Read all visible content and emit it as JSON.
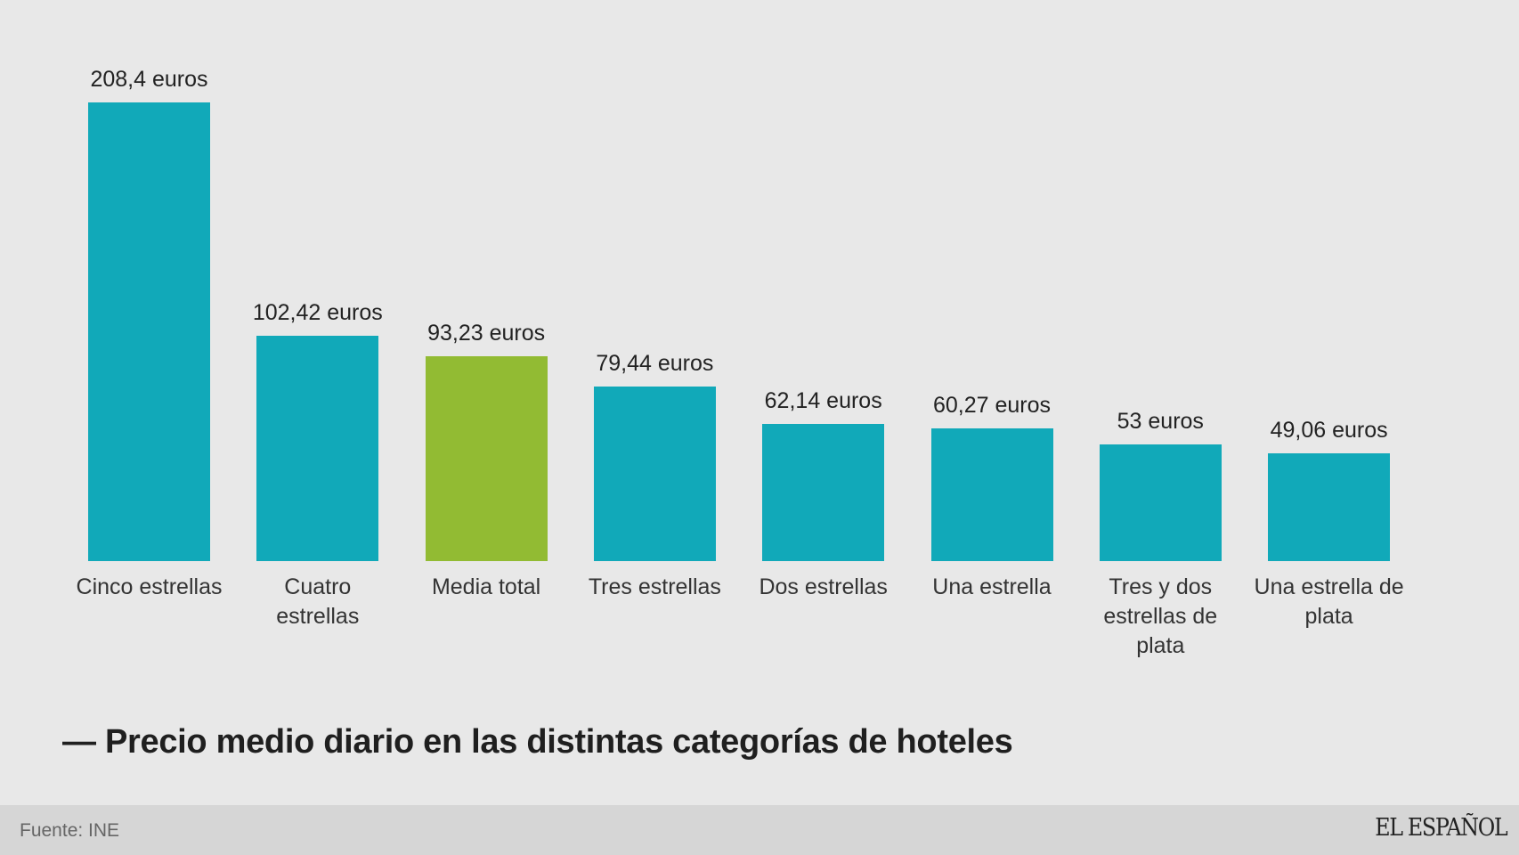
{
  "chart_data": {
    "type": "bar",
    "title": "— Precio medio diario en las distintas categorías de hoteles",
    "categories": [
      "Cinco estrellas",
      "Cuatro estrellas",
      "Media total",
      "Tres estrellas",
      "Dos estrellas",
      "Una estrella",
      "Tres y dos estrellas de plata",
      "Una estrella de plata"
    ],
    "values": [
      208.4,
      102.42,
      93.23,
      79.44,
      62.14,
      60.27,
      53,
      49.06
    ],
    "data_labels": [
      "208,4 euros",
      "102,42 euros",
      "93,23 euros",
      "79,44 euros",
      "62,14 euros",
      "60,27 euros",
      "53 euros",
      "49,06 euros"
    ],
    "highlight_index": 2,
    "colors": {
      "default": "#11a9b9",
      "highlight": "#92bb33"
    },
    "xlabel": "",
    "ylabel": "",
    "ylim": [
      0,
      208.4
    ],
    "grid": false
  },
  "footer": {
    "source": "Fuente: INE",
    "brand": "EL ESPAÑOL"
  }
}
